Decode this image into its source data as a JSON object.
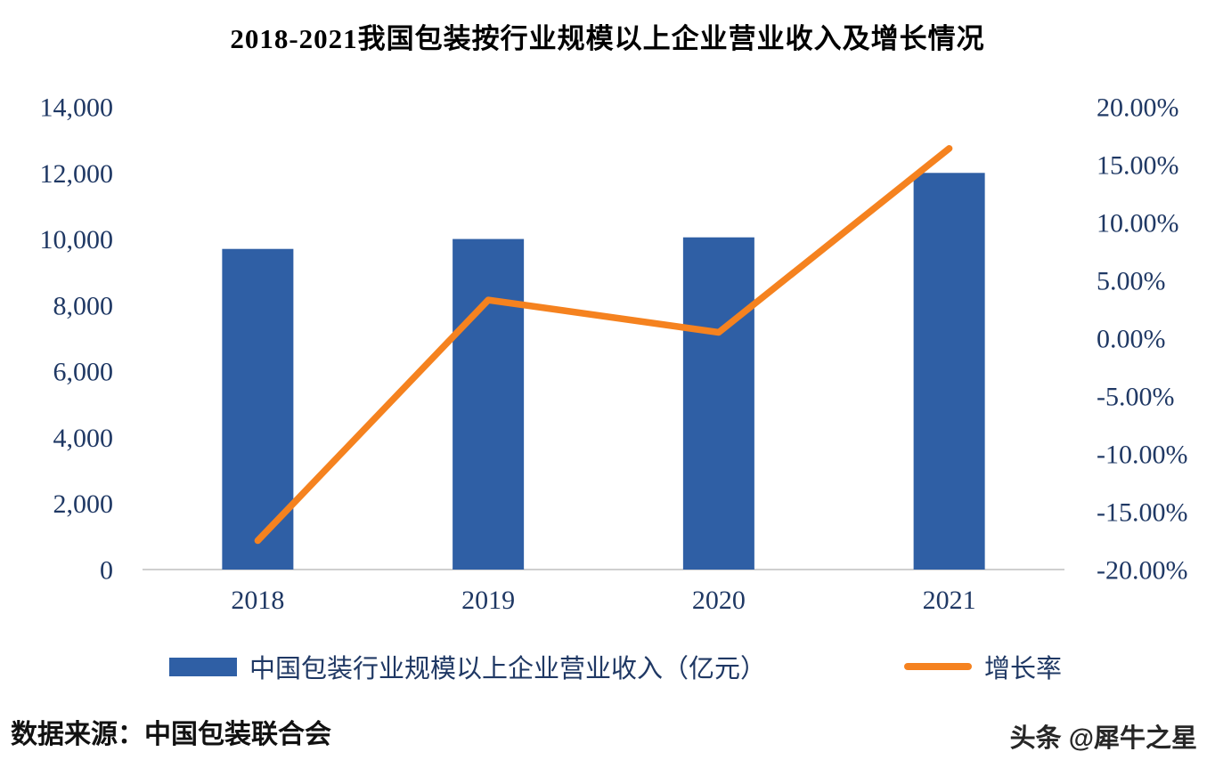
{
  "title": "2018-2021我国包装按行业规模以上企业营业收入及增长情况",
  "legend": {
    "bar_label": "中国包装行业规模以上企业营业收入（亿元）",
    "line_label": "增长率"
  },
  "footer": {
    "source": "数据来源：中国包装联合会",
    "watermark": "头条 @犀牛之星"
  },
  "colors": {
    "bar": "#2f5fa5",
    "line": "#f5821f",
    "axis_text": "#1f3864",
    "title_text": "#000000",
    "axis_line": "#bfbfbf"
  },
  "chart_data": {
    "type": "bar+line",
    "title": "2018-2021我国包装按行业规模以上企业营业收入及增长情况",
    "categories": [
      "2018",
      "2019",
      "2020",
      "2021"
    ],
    "series": [
      {
        "name": "中国包装行业规模以上企业营业收入（亿元）",
        "type": "bar",
        "axis": "left",
        "values": [
          9700,
          10000,
          10050,
          12000
        ]
      },
      {
        "name": "增长率",
        "type": "line",
        "axis": "right",
        "values": [
          -17.5,
          3.3,
          0.5,
          16.4
        ]
      }
    ],
    "left_axis": {
      "min": 0,
      "max": 14000,
      "step": 2000,
      "tick_labels": [
        "0",
        "2,000",
        "4,000",
        "6,000",
        "8,000",
        "10,000",
        "12,000",
        "14,000"
      ]
    },
    "right_axis": {
      "min": -20,
      "max": 20,
      "step": 5,
      "tick_labels": [
        "-20.00%",
        "-15.00%",
        "-10.00%",
        "-5.00%",
        "0.00%",
        "5.00%",
        "10.00%",
        "15.00%",
        "20.00%"
      ]
    },
    "grid": false,
    "legend_position": "bottom"
  }
}
